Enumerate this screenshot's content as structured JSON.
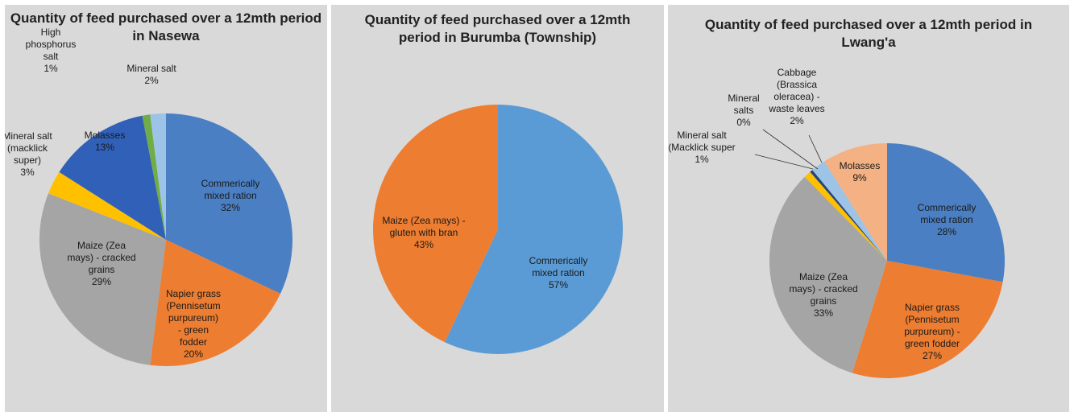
{
  "chart_data": [
    {
      "type": "pie",
      "title": "Quantity of feed purchased over a 12mth period in Nasewa",
      "slices": [
        {
          "label": [
            "Commerically",
            "mixed ration",
            "32%"
          ],
          "value": 32,
          "color": "#4a7fc4"
        },
        {
          "label": [
            "Napier grass",
            "(Pennisetum",
            "purpureum)",
            "- green",
            "fodder",
            "20%"
          ],
          "value": 20,
          "color": "#ed7d31"
        },
        {
          "label": [
            "Maize (Zea",
            "mays) - cracked",
            "grains",
            "29%"
          ],
          "value": 29,
          "color": "#a5a5a5"
        },
        {
          "label": [
            "Mineral salt",
            "(macklick",
            "super)",
            "3%"
          ],
          "value": 3,
          "color": "#ffc000"
        },
        {
          "label": [
            "Molasses",
            "13%"
          ],
          "value": 13,
          "color": "#3060b8"
        },
        {
          "label": [
            "High",
            "phosphorus",
            "salt",
            "1%"
          ],
          "value": 1,
          "color": "#70ad47"
        },
        {
          "label": [
            "Mineral salt",
            "2%"
          ],
          "value": 2,
          "color": "#9dc3e6"
        }
      ]
    },
    {
      "type": "pie",
      "title": "Quantity of feed purchased over a 12mth period in Burumba (Township)",
      "slices": [
        {
          "label": [
            "Commerically",
            "mixed ration",
            "57%"
          ],
          "value": 57,
          "color": "#5b9bd5"
        },
        {
          "label": [
            "Maize (Zea mays) -",
            "gluten with bran",
            "43%"
          ],
          "value": 43,
          "color": "#ed7d31"
        }
      ]
    },
    {
      "type": "pie",
      "title": "Quantity of feed purchased over a 12mth period in Lwang'a",
      "slices": [
        {
          "label": [
            "Commerically",
            "mixed ration",
            "28%"
          ],
          "value": 28,
          "color": "#4a7fc4"
        },
        {
          "label": [
            "Napier grass",
            "(Pennisetum",
            "purpureum) -",
            "green fodder",
            "27%"
          ],
          "value": 27,
          "color": "#ed7d31"
        },
        {
          "label": [
            "Maize (Zea",
            "mays) - cracked",
            "grains",
            "33%"
          ],
          "value": 33,
          "color": "#a5a5a5"
        },
        {
          "label": [
            "Mineral salt",
            "(Macklick super",
            "1%"
          ],
          "value": 1,
          "color": "#ffc000"
        },
        {
          "label": [
            "Mineral",
            "salts",
            "0%"
          ],
          "value": 0.4,
          "color": "#264478"
        },
        {
          "label": [
            "Cabbage",
            "(Brassica",
            "oleracea) -",
            "waste leaves",
            "2%"
          ],
          "value": 2,
          "color": "#9dc3e6"
        },
        {
          "label": [
            "Molasses",
            "9%"
          ],
          "value": 9,
          "color": "#f4b183"
        }
      ]
    }
  ]
}
